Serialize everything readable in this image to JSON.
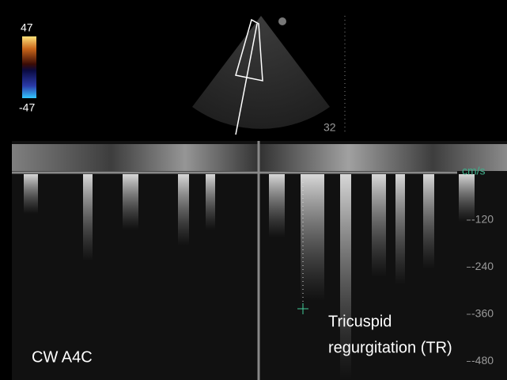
{
  "color_scale": {
    "max": "47",
    "min": "-47"
  },
  "depth": "32",
  "velocity_axis": {
    "unit": "cm/s",
    "ticks": [
      -120,
      -240,
      -360,
      -480
    ]
  },
  "view_label": "CW A4C",
  "annotation": {
    "line1": "Tricuspid",
    "line2": "regurgitation (TR)"
  }
}
